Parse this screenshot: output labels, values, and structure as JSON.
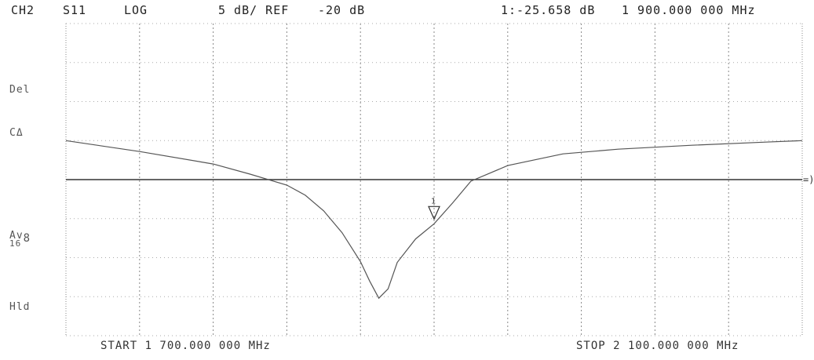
{
  "header": {
    "channel": "CH2",
    "parameter": "S11",
    "format": "LOG",
    "scale": "5 dB/ REF",
    "reference": "-20 dB",
    "marker": "1:-25.658 dB",
    "marker_freq": "1 900.000 000 MHz"
  },
  "side": {
    "del": "Del",
    "cor": "CΔ",
    "avg": "Av",
    "avg_sup": "8",
    "avg_count": "16",
    "hold": "Hld"
  },
  "footer": {
    "start": "START 1 700.000 000 MHz",
    "stop": "STOP 2 100.000 000 MHz"
  },
  "reference_marker": "=)",
  "chart_data": {
    "type": "line",
    "xlabel": "",
    "ylabel": "",
    "x_unit": "MHz",
    "y_unit": "dB",
    "xlim": [
      1700,
      2100
    ],
    "ylim": [
      -40,
      0
    ],
    "reference_level": -20,
    "grid": true,
    "series": [
      {
        "x": [
          1700,
          1740,
          1780,
          1800,
          1820,
          1830,
          1840,
          1850,
          1860,
          1865,
          1870,
          1875,
          1880,
          1890,
          1900,
          1910,
          1920,
          1940,
          1970,
          2000,
          2040,
          2080,
          2100
        ],
        "y": [
          -15.0,
          -16.4,
          -18.0,
          -19.3,
          -20.7,
          -22.0,
          -24.0,
          -26.8,
          -30.5,
          -33.0,
          -35.2,
          -34.0,
          -30.6,
          -27.6,
          -25.658,
          -23.0,
          -20.2,
          -18.2,
          -16.7,
          -16.1,
          -15.6,
          -15.2,
          -15.0
        ]
      }
    ],
    "markers": [
      {
        "id": "1",
        "x": 1900,
        "y": -25.658
      }
    ]
  }
}
